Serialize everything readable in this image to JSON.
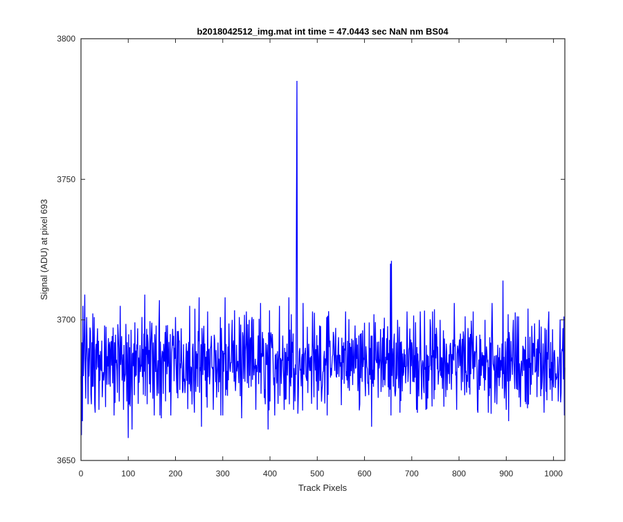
{
  "chart_data": {
    "type": "line",
    "title": "b2018042512_img.mat int time = 47.0443 sec  NaN nm BS04",
    "xlabel": "Track Pixels",
    "ylabel": "Signal (ADU) at pixel 693",
    "xlim": [
      0,
      1024
    ],
    "ylim": [
      3650,
      3800
    ],
    "xticks": [
      0,
      100,
      200,
      300,
      400,
      500,
      600,
      700,
      800,
      900,
      1000
    ],
    "yticks": [
      3650,
      3700,
      3750,
      3800
    ],
    "grid": false,
    "series": [
      {
        "color": "#0000ff",
        "baseline": 3685,
        "noise_amplitude": 9,
        "points": [
          [
            0,
            3680
          ],
          [
            1,
            3659
          ],
          [
            2,
            3692
          ],
          [
            3,
            3664
          ],
          [
            4,
            3705
          ],
          [
            5,
            3680
          ],
          [
            8,
            3709
          ],
          [
            10,
            3672
          ],
          [
            12,
            3701
          ],
          [
            15,
            3670
          ],
          [
            20,
            3696
          ],
          [
            22,
            3670
          ],
          [
            28,
            3701
          ],
          [
            30,
            3667
          ],
          [
            35,
            3697
          ],
          [
            38,
            3668
          ],
          [
            50,
            3698
          ],
          [
            52,
            3669
          ],
          [
            60,
            3691
          ],
          [
            70,
            3666
          ],
          [
            83,
            3705
          ],
          [
            90,
            3668
          ],
          [
            97,
            3671
          ],
          [
            100,
            3658
          ],
          [
            108,
            3661
          ],
          [
            120,
            3697
          ],
          [
            135,
            3709
          ],
          [
            140,
            3670
          ],
          [
            150,
            3699
          ],
          [
            155,
            3666
          ],
          [
            166,
            3707
          ],
          [
            170,
            3665
          ],
          [
            180,
            3698
          ],
          [
            190,
            3666
          ],
          [
            200,
            3701
          ],
          [
            212,
            3697
          ],
          [
            215,
            3674
          ],
          [
            230,
            3705
          ],
          [
            240,
            3667
          ],
          [
            250,
            3708
          ],
          [
            255,
            3662
          ],
          [
            268,
            3703
          ],
          [
            280,
            3668
          ],
          [
            295,
            3701
          ],
          [
            300,
            3666
          ],
          [
            305,
            3708
          ],
          [
            310,
            3673
          ],
          [
            320,
            3700
          ],
          [
            335,
            3701
          ],
          [
            340,
            3665
          ],
          [
            350,
            3703
          ],
          [
            362,
            3701
          ],
          [
            370,
            3668
          ],
          [
            380,
            3706
          ],
          [
            390,
            3670
          ],
          [
            396,
            3661
          ],
          [
            400,
            3671
          ],
          [
            405,
            3695
          ],
          [
            410,
            3666
          ],
          [
            420,
            3705
          ],
          [
            430,
            3668
          ],
          [
            440,
            3708
          ],
          [
            445,
            3702
          ],
          [
            450,
            3668
          ],
          [
            456,
            3740
          ],
          [
            457,
            3785
          ],
          [
            458,
            3690
          ],
          [
            460,
            3673
          ],
          [
            470,
            3706
          ],
          [
            480,
            3674
          ],
          [
            490,
            3703
          ],
          [
            500,
            3668
          ],
          [
            505,
            3698
          ],
          [
            510,
            3675
          ],
          [
            520,
            3701
          ],
          [
            535,
            3694
          ],
          [
            540,
            3680
          ],
          [
            560,
            3703
          ],
          [
            570,
            3680
          ],
          [
            580,
            3698
          ],
          [
            590,
            3670
          ],
          [
            600,
            3699
          ],
          [
            612,
            3690
          ],
          [
            615,
            3662
          ],
          [
            620,
            3702
          ],
          [
            640,
            3697
          ],
          [
            650,
            3676
          ],
          [
            655,
            3720
          ],
          [
            657,
            3721
          ],
          [
            660,
            3687
          ],
          [
            670,
            3700
          ],
          [
            675,
            3667
          ],
          [
            690,
            3703
          ],
          [
            700,
            3692
          ],
          [
            710,
            3668
          ],
          [
            718,
            3703
          ],
          [
            730,
            3668
          ],
          [
            740,
            3697
          ],
          [
            760,
            3700
          ],
          [
            775,
            3675
          ],
          [
            790,
            3706
          ],
          [
            795,
            3668
          ],
          [
            810,
            3694
          ],
          [
            830,
            3703
          ],
          [
            840,
            3667
          ],
          [
            855,
            3700
          ],
          [
            862,
            3667
          ],
          [
            870,
            3706
          ],
          [
            880,
            3670
          ],
          [
            893,
            3714
          ],
          [
            900,
            3668
          ],
          [
            905,
            3664
          ],
          [
            915,
            3700
          ],
          [
            930,
            3669
          ],
          [
            950,
            3694
          ],
          [
            970,
            3700
          ],
          [
            980,
            3667
          ],
          [
            990,
            3703
          ],
          [
            1000,
            3676
          ],
          [
            1010,
            3671
          ],
          [
            1016,
            3674
          ],
          [
            1024,
            3683
          ]
        ]
      }
    ]
  }
}
